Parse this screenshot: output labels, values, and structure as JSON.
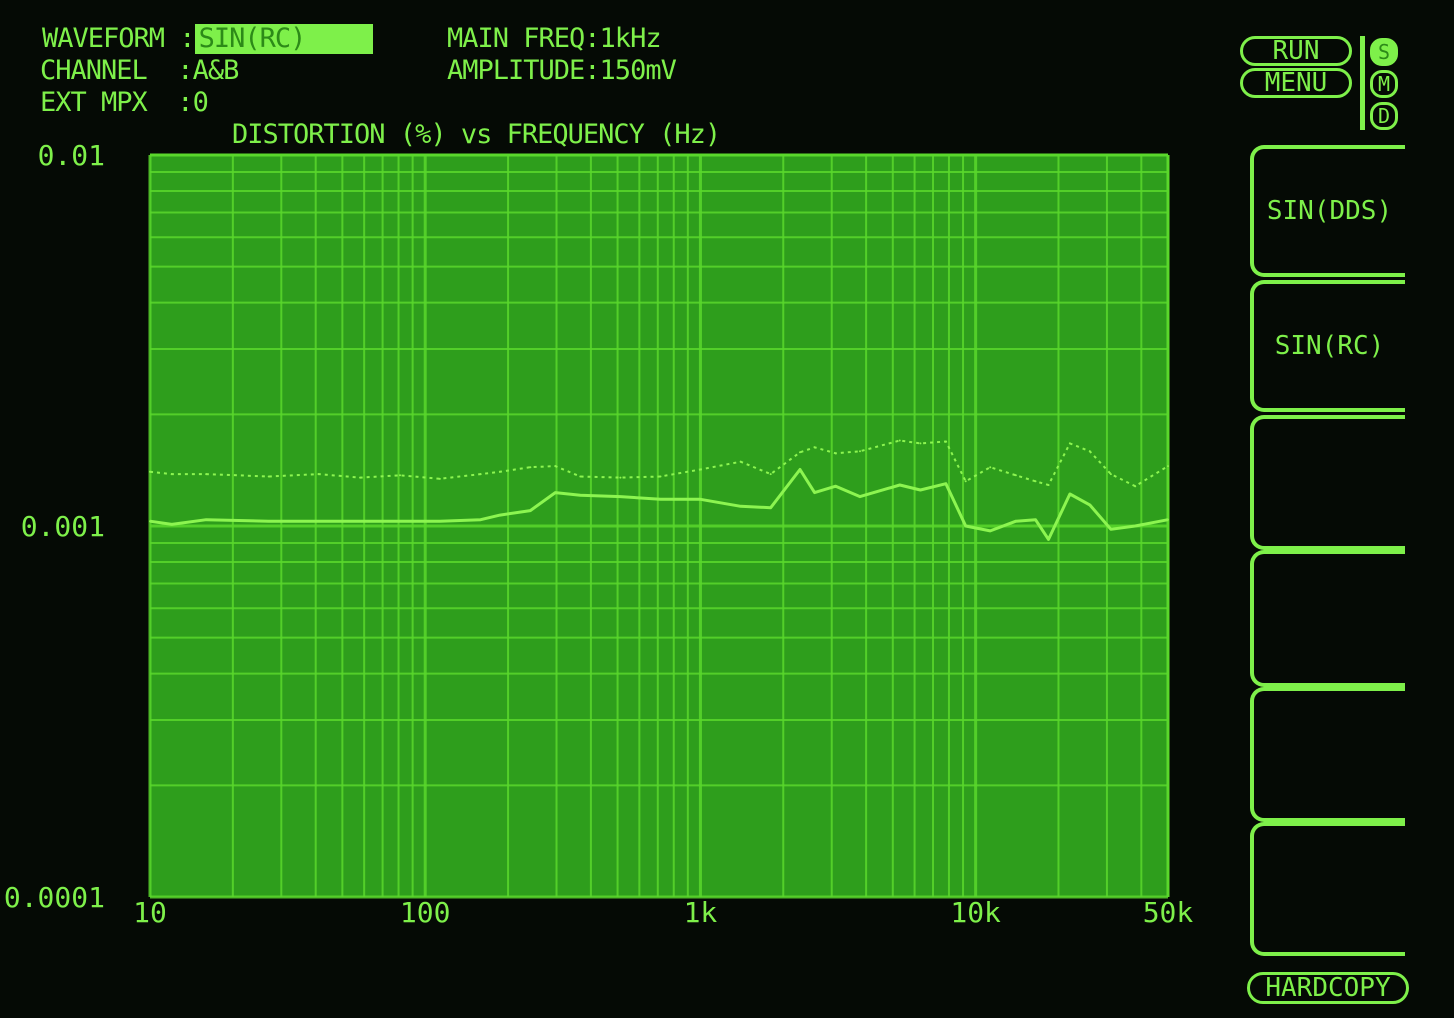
{
  "header": {
    "waveform_label": "WAVEFORM :",
    "waveform_value": "SIN(RC)",
    "channel_label": "CHANNEL  :",
    "channel_value": "A&B",
    "ext_mpx_label": "EXT MPX  :",
    "ext_mpx_value": "0",
    "main_freq": "MAIN FREQ:1kHz",
    "amplitude": "AMPLITUDE:150mV"
  },
  "controls": {
    "run": "RUN",
    "menu": "MENU",
    "indicators": [
      {
        "label": "S",
        "active": true
      },
      {
        "label": "M",
        "active": false
      },
      {
        "label": "D",
        "active": false
      }
    ],
    "softkeys": [
      "SIN(DDS)",
      "SIN(RC)",
      "",
      "",
      "",
      ""
    ],
    "hardcopy": "HARDCOPY"
  },
  "colors": {
    "screen": "#050a05",
    "plot_bg": "#2e9e1c",
    "grid": "#5ad82c",
    "trace": "#8cf550",
    "text": "#7ef04a"
  },
  "chart_data": {
    "type": "line",
    "title": "DISTORTION (%) vs FREQUENCY (Hz)",
    "x_scale": "log",
    "y_scale": "log",
    "xlim": [
      10,
      50000
    ],
    "ylim": [
      0.0001,
      0.01
    ],
    "grid": true,
    "x_ticks": [
      {
        "value": 10,
        "label": "10"
      },
      {
        "value": 100,
        "label": "100"
      },
      {
        "value": 1000,
        "label": "1k"
      },
      {
        "value": 10000,
        "label": "10k"
      },
      {
        "value": 50000,
        "label": "50k"
      }
    ],
    "y_ticks": [
      {
        "value": 0.01,
        "label": "0.01"
      },
      {
        "value": 0.001,
        "label": "0.001"
      },
      {
        "value": 0.0001,
        "label": "0.0001"
      }
    ],
    "x": [
      10,
      12,
      16,
      27,
      41,
      58,
      81,
      113,
      159,
      187,
      241,
      297,
      366,
      512,
      716,
      1000,
      1400,
      1800,
      2300,
      2600,
      3100,
      3800,
      5300,
      6300,
      7800,
      9200,
      11300,
      14000,
      16500,
      18400,
      22000,
      26000,
      31000,
      38000,
      50000
    ],
    "series": [
      {
        "style": "solid",
        "values": [
          0.00103,
          0.00101,
          0.00104,
          0.00103,
          0.00103,
          0.00103,
          0.00103,
          0.00103,
          0.00104,
          0.00107,
          0.0011,
          0.00123,
          0.00121,
          0.0012,
          0.00118,
          0.00118,
          0.00113,
          0.00112,
          0.00142,
          0.00123,
          0.00128,
          0.0012,
          0.00129,
          0.00125,
          0.0013,
          0.001,
          0.00097,
          0.00103,
          0.00104,
          0.00092,
          0.00122,
          0.00114,
          0.00098,
          0.001,
          0.00104
        ]
      },
      {
        "style": "dotted",
        "values": [
          0.0014,
          0.00138,
          0.00138,
          0.00136,
          0.00138,
          0.00135,
          0.00137,
          0.00134,
          0.00138,
          0.0014,
          0.00144,
          0.00145,
          0.00136,
          0.00135,
          0.00136,
          0.00142,
          0.00149,
          0.00138,
          0.00158,
          0.00163,
          0.00157,
          0.00159,
          0.0017,
          0.00167,
          0.00169,
          0.00132,
          0.00144,
          0.00137,
          0.00132,
          0.00129,
          0.00167,
          0.00159,
          0.00138,
          0.00128,
          0.00145
        ]
      }
    ]
  }
}
